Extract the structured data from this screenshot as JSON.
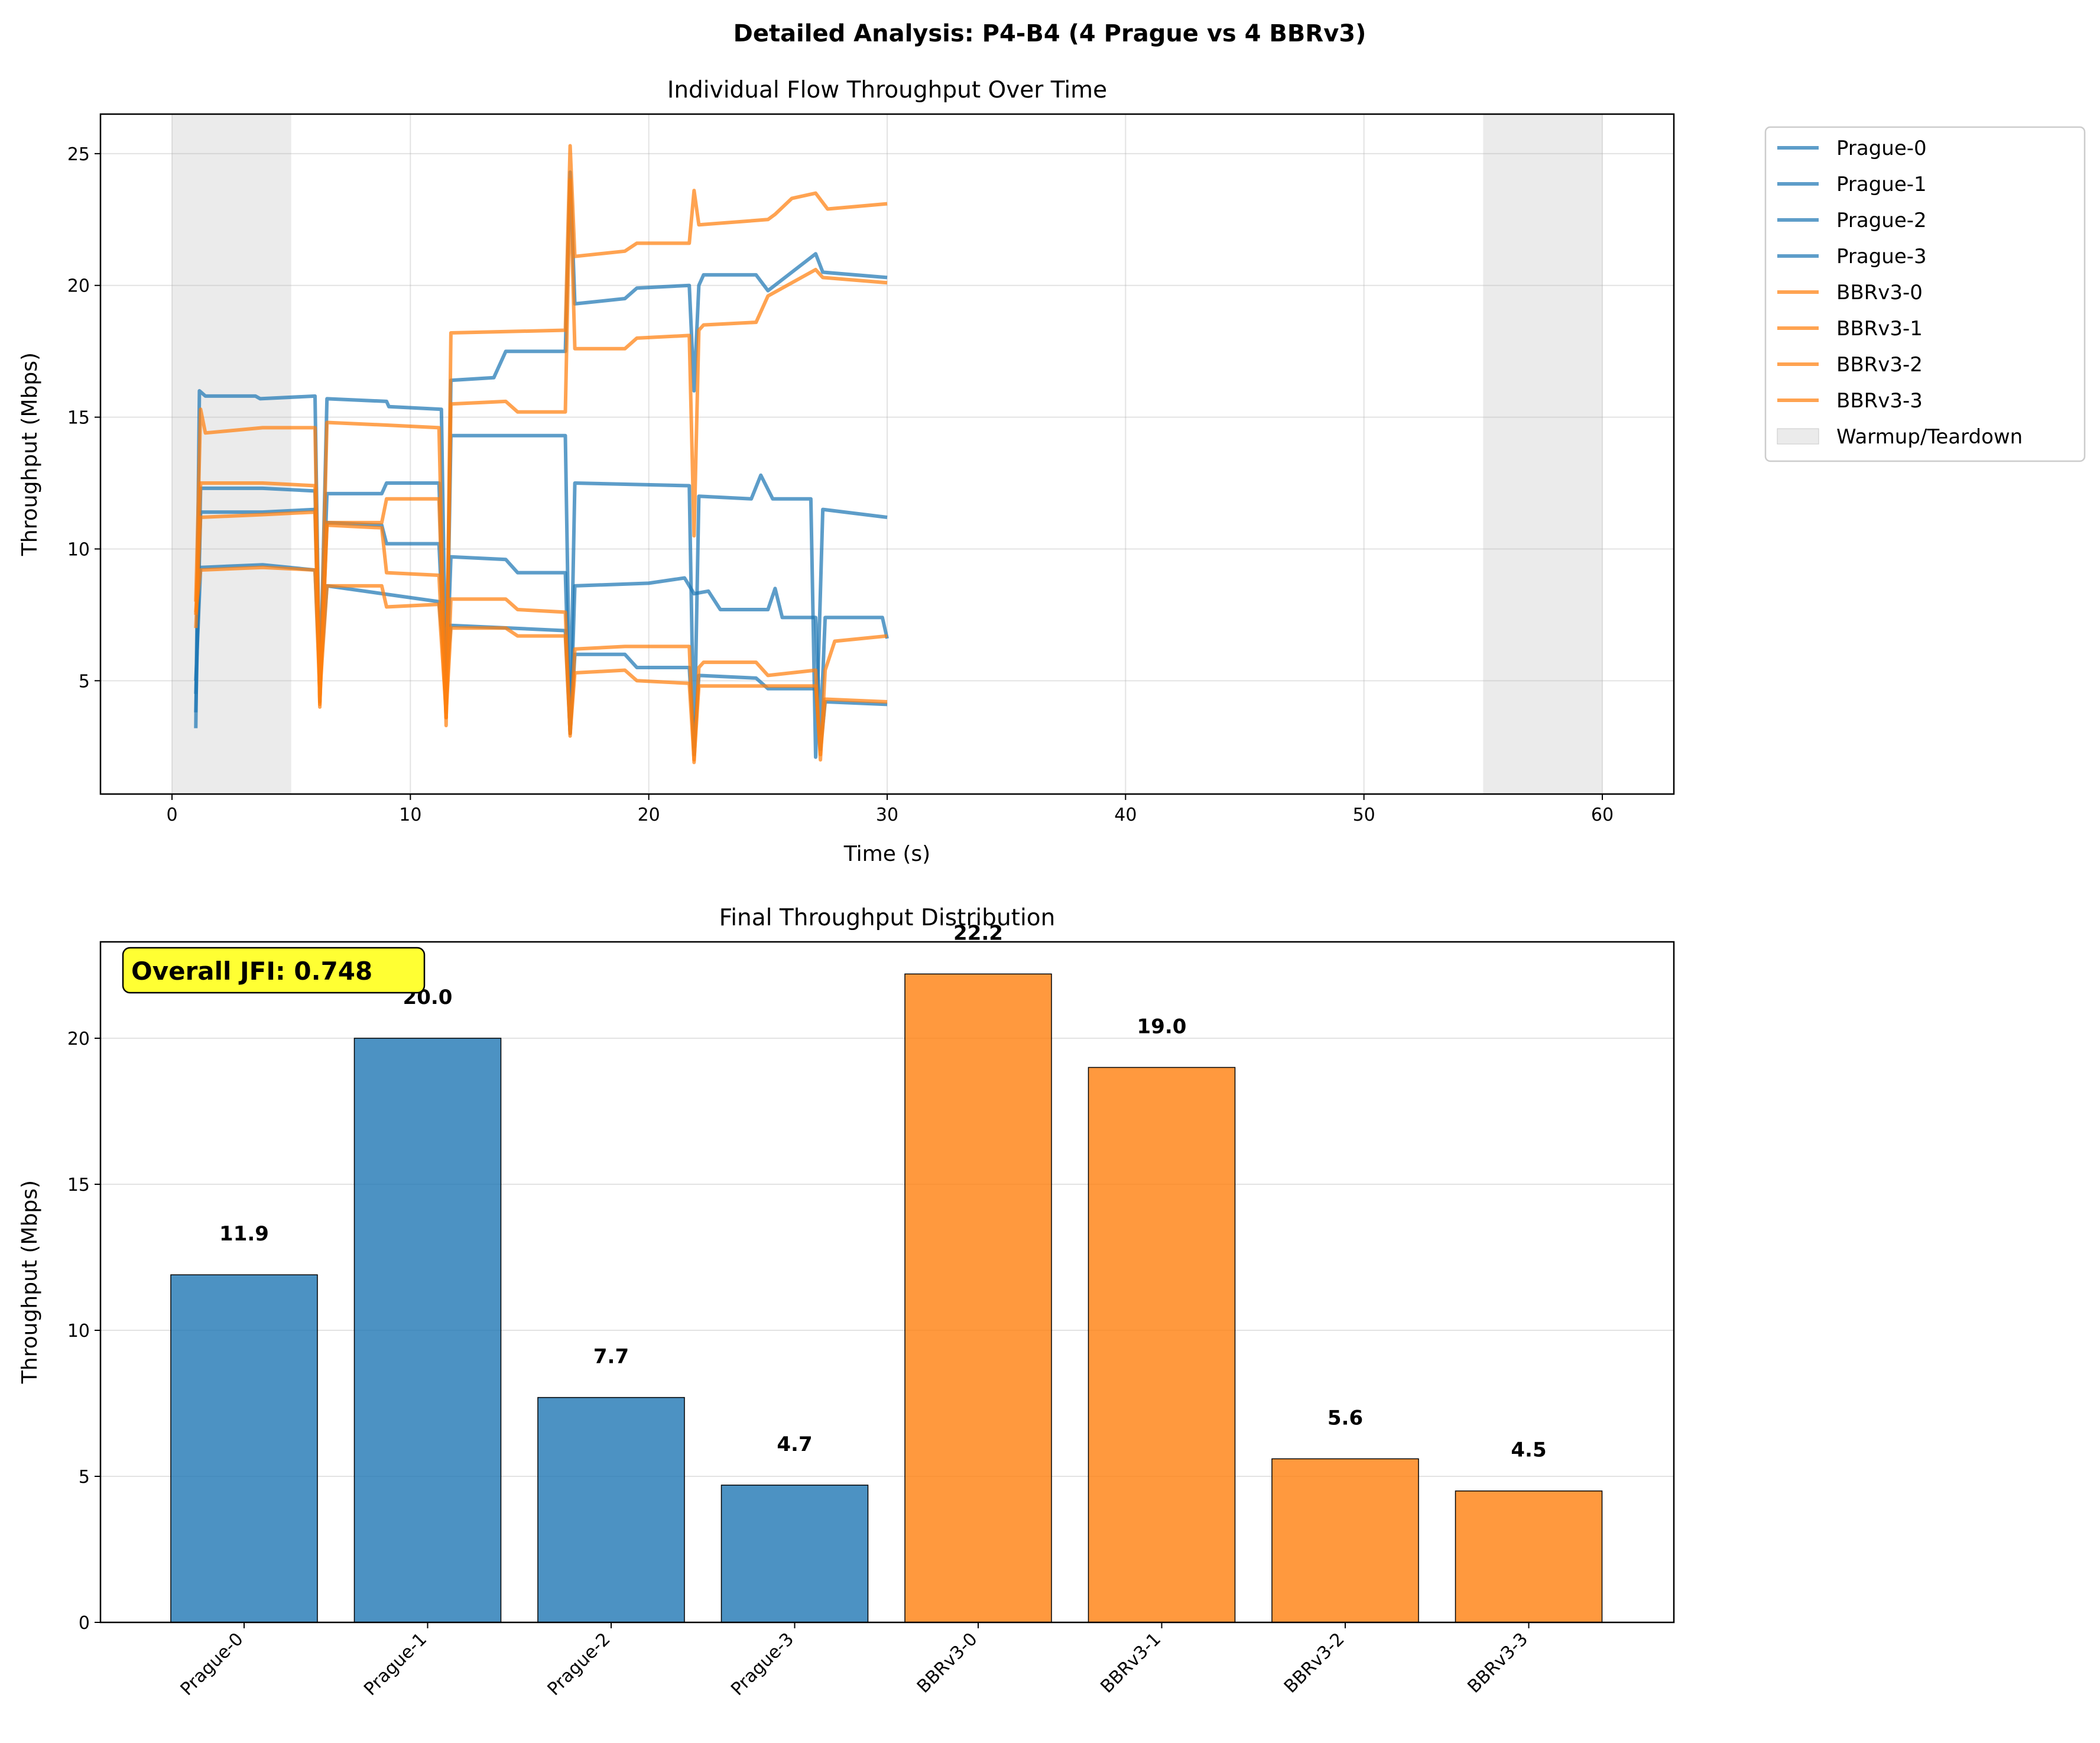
{
  "figure_title": "Detailed Analysis: P4-B4 (4 Prague vs 4 BBRv3)",
  "colors": {
    "prague": "#1f77b4",
    "bbr": "#ff7f0e",
    "shade": "#dddddd",
    "jfi_box": "#ffff33"
  },
  "chart_data": [
    {
      "type": "line",
      "title": "Individual Flow Throughput Over Time",
      "xlabel": "Time (s)",
      "ylabel": "Throughput (Mbps)",
      "xlim": [
        -3,
        63
      ],
      "ylim": [
        0.7,
        26.5
      ],
      "xticks": [
        0,
        10,
        20,
        30,
        40,
        50,
        60
      ],
      "yticks": [
        5,
        10,
        15,
        20,
        25
      ],
      "grid": true,
      "legend_position": "outside-right",
      "shaded_regions": [
        {
          "x": [
            0,
            5
          ],
          "label": "Warmup/Teardown"
        },
        {
          "x": [
            55,
            60
          ],
          "label": ""
        }
      ],
      "series": [
        {
          "name": "Prague-0",
          "group": "prague",
          "points": [
            [
              1.0,
              3.2
            ],
            [
              1.15,
              16.0
            ],
            [
              1.4,
              15.8
            ],
            [
              3.5,
              15.8
            ],
            [
              3.7,
              15.7
            ],
            [
              6.0,
              15.8
            ],
            [
              6.2,
              4.2
            ],
            [
              6.5,
              15.7
            ],
            [
              9.0,
              15.6
            ],
            [
              9.1,
              15.4
            ],
            [
              11.3,
              15.3
            ],
            [
              11.5,
              4.0
            ],
            [
              11.7,
              14.3
            ],
            [
              16.5,
              14.3
            ],
            [
              16.7,
              3.3
            ],
            [
              16.9,
              12.5
            ],
            [
              21.7,
              12.4
            ],
            [
              21.9,
              2.2
            ],
            [
              22.1,
              12.0
            ],
            [
              24.3,
              11.9
            ],
            [
              24.7,
              12.8
            ],
            [
              25.2,
              11.9
            ],
            [
              26.8,
              11.9
            ],
            [
              27.0,
              2.1
            ],
            [
              27.3,
              11.5
            ],
            [
              30.0,
              11.2
            ]
          ]
        },
        {
          "name": "Prague-1",
          "group": "prague",
          "points": [
            [
              1.0,
              3.8
            ],
            [
              1.2,
              12.3
            ],
            [
              3.8,
              12.3
            ],
            [
              6.0,
              12.2
            ],
            [
              6.2,
              4.6
            ],
            [
              6.5,
              12.1
            ],
            [
              8.8,
              12.1
            ],
            [
              9.0,
              12.5
            ],
            [
              11.2,
              12.5
            ],
            [
              11.5,
              4.3
            ],
            [
              11.7,
              16.4
            ],
            [
              13.5,
              16.5
            ],
            [
              14.0,
              17.5
            ],
            [
              16.5,
              17.5
            ],
            [
              16.7,
              24.3
            ],
            [
              16.9,
              19.3
            ],
            [
              19.0,
              19.5
            ],
            [
              19.5,
              19.9
            ],
            [
              21.7,
              20.0
            ],
            [
              21.9,
              16.0
            ],
            [
              22.1,
              20.0
            ],
            [
              22.3,
              20.4
            ],
            [
              24.5,
              20.4
            ],
            [
              25.0,
              19.8
            ],
            [
              27.0,
              21.2
            ],
            [
              27.3,
              20.5
            ],
            [
              30.0,
              20.3
            ]
          ]
        },
        {
          "name": "Prague-2",
          "group": "prague",
          "points": [
            [
              1.0,
              4.5
            ],
            [
              1.2,
              11.4
            ],
            [
              3.8,
              11.4
            ],
            [
              6.0,
              11.5
            ],
            [
              6.2,
              4.9
            ],
            [
              6.5,
              11.0
            ],
            [
              8.8,
              10.9
            ],
            [
              9.0,
              10.2
            ],
            [
              11.2,
              10.2
            ],
            [
              11.5,
              4.6
            ],
            [
              11.7,
              9.7
            ],
            [
              14.0,
              9.6
            ],
            [
              14.5,
              9.1
            ],
            [
              16.5,
              9.1
            ],
            [
              16.7,
              3.0
            ],
            [
              16.9,
              8.6
            ],
            [
              20.0,
              8.7
            ],
            [
              21.5,
              8.9
            ],
            [
              21.9,
              8.3
            ],
            [
              22.5,
              8.4
            ],
            [
              23.0,
              7.7
            ],
            [
              25.0,
              7.7
            ],
            [
              25.3,
              8.5
            ],
            [
              25.6,
              7.4
            ],
            [
              27.0,
              7.4
            ],
            [
              27.2,
              3.0
            ],
            [
              27.4,
              7.4
            ],
            [
              29.8,
              7.4
            ],
            [
              30.0,
              6.6
            ]
          ]
        },
        {
          "name": "Prague-3",
          "group": "prague",
          "points": [
            [
              1.0,
              5.0
            ],
            [
              1.2,
              9.3
            ],
            [
              3.8,
              9.4
            ],
            [
              6.0,
              9.2
            ],
            [
              6.2,
              5.0
            ],
            [
              6.5,
              8.6
            ],
            [
              11.2,
              8.0
            ],
            [
              11.5,
              5.2
            ],
            [
              11.7,
              7.1
            ],
            [
              16.5,
              6.9
            ],
            [
              16.7,
              3.0
            ],
            [
              16.9,
              6.0
            ],
            [
              19.0,
              6.0
            ],
            [
              19.5,
              5.5
            ],
            [
              21.7,
              5.5
            ],
            [
              21.9,
              2.5
            ],
            [
              22.1,
              5.2
            ],
            [
              24.5,
              5.1
            ],
            [
              25.0,
              4.7
            ],
            [
              27.0,
              4.7
            ],
            [
              27.2,
              2.4
            ],
            [
              27.4,
              4.2
            ],
            [
              30.0,
              4.1
            ]
          ]
        },
        {
          "name": "BBRv3-0",
          "group": "bbr",
          "points": [
            [
              1.0,
              8.0
            ],
            [
              1.2,
              15.3
            ],
            [
              1.4,
              14.4
            ],
            [
              3.8,
              14.6
            ],
            [
              6.0,
              14.6
            ],
            [
              6.2,
              4.0
            ],
            [
              6.5,
              14.8
            ],
            [
              9.0,
              14.7
            ],
            [
              11.2,
              14.6
            ],
            [
              11.5,
              3.3
            ],
            [
              11.7,
              18.2
            ],
            [
              16.5,
              18.3
            ],
            [
              16.7,
              25.3
            ],
            [
              16.9,
              21.1
            ],
            [
              19.0,
              21.3
            ],
            [
              19.5,
              21.6
            ],
            [
              21.7,
              21.6
            ],
            [
              21.9,
              23.6
            ],
            [
              22.1,
              22.3
            ],
            [
              25.0,
              22.5
            ],
            [
              25.3,
              22.7
            ],
            [
              26.0,
              23.3
            ],
            [
              27.0,
              23.5
            ],
            [
              27.5,
              22.9
            ],
            [
              30.0,
              23.1
            ]
          ]
        },
        {
          "name": "BBRv3-1",
          "group": "bbr",
          "points": [
            [
              1.0,
              7.5
            ],
            [
              1.2,
              12.5
            ],
            [
              3.8,
              12.5
            ],
            [
              6.0,
              12.4
            ],
            [
              6.2,
              4.1
            ],
            [
              6.5,
              11.0
            ],
            [
              8.8,
              11.0
            ],
            [
              9.0,
              11.9
            ],
            [
              11.2,
              11.9
            ],
            [
              11.5,
              3.6
            ],
            [
              11.7,
              15.5
            ],
            [
              14.0,
              15.6
            ],
            [
              14.5,
              15.2
            ],
            [
              16.5,
              15.2
            ],
            [
              16.7,
              24.0
            ],
            [
              16.9,
              17.6
            ],
            [
              19.0,
              17.6
            ],
            [
              19.5,
              18.0
            ],
            [
              21.7,
              18.1
            ],
            [
              21.9,
              10.5
            ],
            [
              22.1,
              18.3
            ],
            [
              22.3,
              18.5
            ],
            [
              24.5,
              18.6
            ],
            [
              25.0,
              19.6
            ],
            [
              27.0,
              20.6
            ],
            [
              27.3,
              20.3
            ],
            [
              30.0,
              20.1
            ]
          ]
        },
        {
          "name": "BBRv3-2",
          "group": "bbr",
          "points": [
            [
              1.0,
              7.0
            ],
            [
              1.2,
              11.2
            ],
            [
              3.8,
              11.3
            ],
            [
              6.0,
              11.4
            ],
            [
              6.2,
              4.2
            ],
            [
              6.5,
              10.9
            ],
            [
              8.8,
              10.8
            ],
            [
              9.0,
              9.1
            ],
            [
              11.2,
              9.0
            ],
            [
              11.5,
              3.6
            ],
            [
              11.7,
              8.1
            ],
            [
              14.0,
              8.1
            ],
            [
              14.5,
              7.7
            ],
            [
              16.5,
              7.6
            ],
            [
              16.7,
              2.9
            ],
            [
              16.9,
              6.2
            ],
            [
              19.0,
              6.3
            ],
            [
              21.7,
              6.3
            ],
            [
              21.9,
              1.9
            ],
            [
              22.1,
              5.5
            ],
            [
              22.3,
              5.7
            ],
            [
              24.5,
              5.7
            ],
            [
              25.0,
              5.2
            ],
            [
              27.0,
              5.4
            ],
            [
              27.2,
              2.0
            ],
            [
              27.4,
              5.4
            ],
            [
              27.8,
              6.5
            ],
            [
              30.0,
              6.7
            ]
          ]
        },
        {
          "name": "BBRv3-3",
          "group": "bbr",
          "points": [
            [
              1.0,
              7.6
            ],
            [
              1.2,
              9.2
            ],
            [
              3.8,
              9.3
            ],
            [
              6.0,
              9.2
            ],
            [
              6.2,
              4.5
            ],
            [
              6.5,
              8.6
            ],
            [
              8.8,
              8.6
            ],
            [
              9.0,
              7.8
            ],
            [
              11.2,
              7.9
            ],
            [
              11.5,
              3.8
            ],
            [
              11.7,
              7.0
            ],
            [
              14.0,
              7.0
            ],
            [
              14.5,
              6.7
            ],
            [
              16.5,
              6.7
            ],
            [
              16.7,
              3.0
            ],
            [
              16.9,
              5.3
            ],
            [
              19.0,
              5.4
            ],
            [
              19.5,
              5.0
            ],
            [
              21.7,
              4.9
            ],
            [
              21.9,
              2.0
            ],
            [
              22.1,
              4.8
            ],
            [
              24.5,
              4.8
            ],
            [
              25.0,
              4.8
            ],
            [
              27.0,
              4.8
            ],
            [
              27.2,
              2.2
            ],
            [
              27.4,
              4.3
            ],
            [
              30.0,
              4.2
            ]
          ]
        }
      ]
    },
    {
      "type": "bar",
      "title": "Final Throughput Distribution",
      "xlabel": "",
      "ylabel": "Throughput (Mbps)",
      "ylim": [
        0,
        23.3
      ],
      "yticks": [
        0,
        5,
        10,
        15,
        20
      ],
      "grid": true,
      "categories": [
        "Prague-0",
        "Prague-1",
        "Prague-2",
        "Prague-3",
        "BBRv3-0",
        "BBRv3-1",
        "BBRv3-2",
        "BBRv3-3"
      ],
      "values": [
        11.9,
        20.0,
        7.7,
        4.7,
        22.2,
        19.0,
        5.6,
        4.5
      ],
      "groups": [
        "prague",
        "prague",
        "prague",
        "prague",
        "bbr",
        "bbr",
        "bbr",
        "bbr"
      ],
      "value_labels": [
        "11.9",
        "20.0",
        "7.7",
        "4.7",
        "22.2",
        "19.0",
        "5.6",
        "4.5"
      ],
      "annotation": "Overall JFI: 0.748"
    }
  ]
}
